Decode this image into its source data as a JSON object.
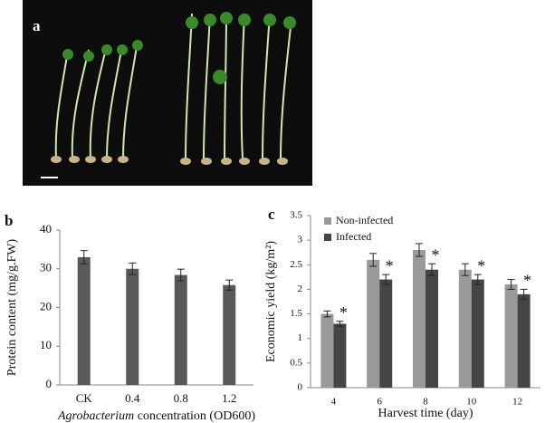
{
  "panel_a": {
    "label": "a"
  },
  "chart_data": [
    {
      "type": "bar",
      "panel": "b",
      "ylabel": "Protein content (mg/g.FW)",
      "xlabel_italic": "Agrobacterium",
      "xlabel": "concentration (OD600)",
      "categories": [
        "CK",
        "0.4",
        "0.8",
        "1.2"
      ],
      "series": [
        {
          "color": "#595959",
          "values": [
            33,
            30,
            28.4,
            25.8
          ],
          "errors": [
            1.7,
            1.5,
            1.5,
            1.3
          ]
        }
      ],
      "ylim": [
        0,
        40
      ],
      "yticks": [
        0,
        10,
        20,
        30,
        40
      ]
    },
    {
      "type": "bar",
      "panel": "c",
      "ylabel": "Economic yield (kg/m²)",
      "xlabel": "Harvest time (day)",
      "categories": [
        "4",
        "6",
        "8",
        "10",
        "12"
      ],
      "series": [
        {
          "name": "Non-infected",
          "color": "#9a9a9a",
          "values": [
            1.5,
            2.6,
            2.8,
            2.4,
            2.1
          ],
          "errors": [
            0.06,
            0.13,
            0.13,
            0.12,
            0.1
          ]
        },
        {
          "name": "Infected",
          "color": "#454545",
          "values": [
            1.3,
            2.2,
            2.4,
            2.2,
            1.9
          ],
          "errors": [
            0.05,
            0.1,
            0.12,
            0.1,
            0.1
          ],
          "annotations": [
            "*",
            "*",
            "*",
            "*",
            "*"
          ]
        }
      ],
      "ylim": [
        0,
        3.5
      ],
      "yticks": [
        0,
        0.5,
        1,
        1.5,
        2,
        2.5,
        3,
        3.5
      ],
      "legend": "upper-left"
    }
  ]
}
